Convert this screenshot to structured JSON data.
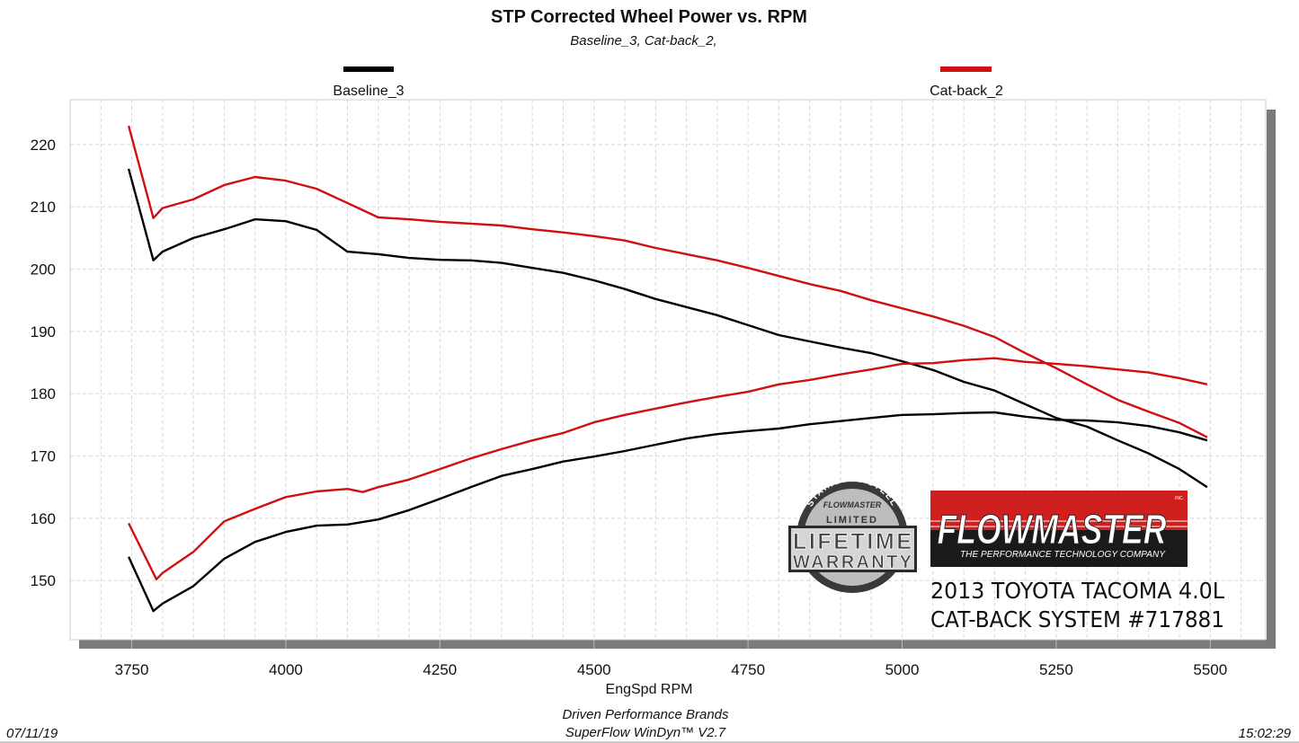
{
  "chart_data": {
    "type": "line",
    "title": "STP Corrected Wheel Power vs. RPM",
    "subtitle": "Baseline_3, Cat-back_2,",
    "xlabel": "EngSpd  RPM",
    "ylabel": "",
    "xlim": [
      3650,
      5590
    ],
    "ylim": [
      140.5,
      227.2
    ],
    "x_ticks": [
      3750,
      4000,
      4250,
      4500,
      4750,
      5000,
      5250,
      5500
    ],
    "y_ticks": [
      150,
      160,
      170,
      180,
      190,
      200,
      210,
      220
    ],
    "grid": true,
    "legend_placement": "top",
    "series": [
      {
        "name": "Baseline_3",
        "color": "#000000",
        "curves": [
          {
            "x": [
              3745,
              3785,
              3800,
              3850,
              3900,
              3950,
              4000,
              4050,
              4100,
              4150,
              4200,
              4250,
              4300,
              4350,
              4400,
              4450,
              4500,
              4550,
              4600,
              4650,
              4700,
              4750,
              4800,
              4850,
              4900,
              4950,
              5000,
              5050,
              5100,
              5150,
              5200,
              5250,
              5300,
              5350,
              5400,
              5450,
              5495
            ],
            "y": [
              216.1,
              201.4,
              202.8,
              205,
              206.4,
              208,
              207.7,
              206.3,
              202.8,
              202.4,
              201.8,
              201.5,
              201.4,
              201,
              200.2,
              199.4,
              198.2,
              196.8,
              195.2,
              193.9,
              192.6,
              191,
              189.4,
              188.4,
              187.4,
              186.5,
              185.2,
              183.8,
              181.9,
              180.5,
              178.3,
              176.1,
              174.7,
              172.5,
              170.4,
              167.9,
              165
            ]
          },
          {
            "x": [
              3745,
              3785,
              3800,
              3850,
              3900,
              3950,
              4000,
              4050,
              4100,
              4150,
              4200,
              4250,
              4300,
              4350,
              4400,
              4450,
              4500,
              4550,
              4600,
              4650,
              4700,
              4750,
              4800,
              4850,
              4900,
              4950,
              5000,
              5050,
              5100,
              5150,
              5200,
              5250,
              5300,
              5350,
              5400,
              5450,
              5495
            ],
            "y": [
              153.8,
              145.1,
              146.3,
              149.1,
              153.5,
              156.2,
              157.8,
              158.8,
              159,
              159.8,
              161.3,
              163.1,
              165,
              166.8,
              167.9,
              169.1,
              169.9,
              170.8,
              171.8,
              172.8,
              173.5,
              174,
              174.4,
              175.1,
              175.6,
              176.1,
              176.6,
              176.7,
              176.9,
              177,
              176.3,
              175.8,
              175.7,
              175.4,
              174.8,
              173.8,
              172.5
            ]
          }
        ]
      },
      {
        "name": "Cat-back_2",
        "color": "#d01010",
        "curves": [
          {
            "x": [
              3745,
              3785,
              3800,
              3850,
              3900,
              3950,
              4000,
              4050,
              4122,
              4150,
              4200,
              4250,
              4300,
              4350,
              4400,
              4450,
              4500,
              4550,
              4600,
              4650,
              4700,
              4750,
              4800,
              4850,
              4900,
              4950,
              5000,
              5050,
              5100,
              5150,
              5200,
              5250,
              5300,
              5350,
              5400,
              5450,
              5495
            ],
            "y": [
              223,
              208.2,
              209.8,
              211.2,
              213.5,
              214.8,
              214.2,
              212.9,
              209.6,
              208.3,
              208,
              207.6,
              207.3,
              207,
              206.4,
              205.9,
              205.3,
              204.6,
              203.4,
              202.4,
              201.4,
              200.2,
              198.9,
              197.6,
              196.5,
              195,
              193.7,
              192.4,
              190.9,
              189.1,
              186.5,
              184.1,
              181.5,
              179,
              177.1,
              175.3,
              173
            ]
          },
          {
            "x": [
              3745,
              3790,
              3800,
              3850,
              3900,
              3950,
              4000,
              4050,
              4100,
              4125,
              4150,
              4200,
              4250,
              4300,
              4350,
              4400,
              4450,
              4500,
              4550,
              4600,
              4650,
              4700,
              4750,
              4800,
              4850,
              4900,
              4950,
              5000,
              5050,
              5100,
              5150,
              5200,
              5250,
              5300,
              5350,
              5400,
              5450,
              5495
            ],
            "y": [
              159.2,
              150.2,
              151.2,
              154.6,
              159.5,
              161.5,
              163.4,
              164.3,
              164.7,
              164.2,
              165,
              166.2,
              167.9,
              169.6,
              171.1,
              172.5,
              173.7,
              175.4,
              176.6,
              177.6,
              178.6,
              179.5,
              180.3,
              181.5,
              182.2,
              183.1,
              183.9,
              184.8,
              184.9,
              185.4,
              185.7,
              185.1,
              184.8,
              184.4,
              183.9,
              183.4,
              182.5,
              181.5
            ]
          }
        ]
      }
    ]
  },
  "logos": {
    "warranty_badge": {
      "arc_text": "STAINLESS STEEL",
      "brand": "FLOWMASTER",
      "line1": "LIMITED",
      "line2": "LIFETIME",
      "line3": "WARRANTY"
    },
    "flowmaster": {
      "name": "FLOWMASTER",
      "tagline": "THE PERFORMANCE TECHNOLOGY COMPANY",
      "inc": "INC.",
      "red": "#d01f1f",
      "black": "#1a1a1a"
    }
  },
  "annotation": {
    "line1": "2013 TOYOTA TACOMA 4.0L",
    "line2": "CAT-BACK SYSTEM #717881"
  },
  "footer": {
    "company": "Driven Performance Brands",
    "software": "SuperFlow WinDyn™  V2.7",
    "date": "07/11/19",
    "time": "15:02:29"
  }
}
